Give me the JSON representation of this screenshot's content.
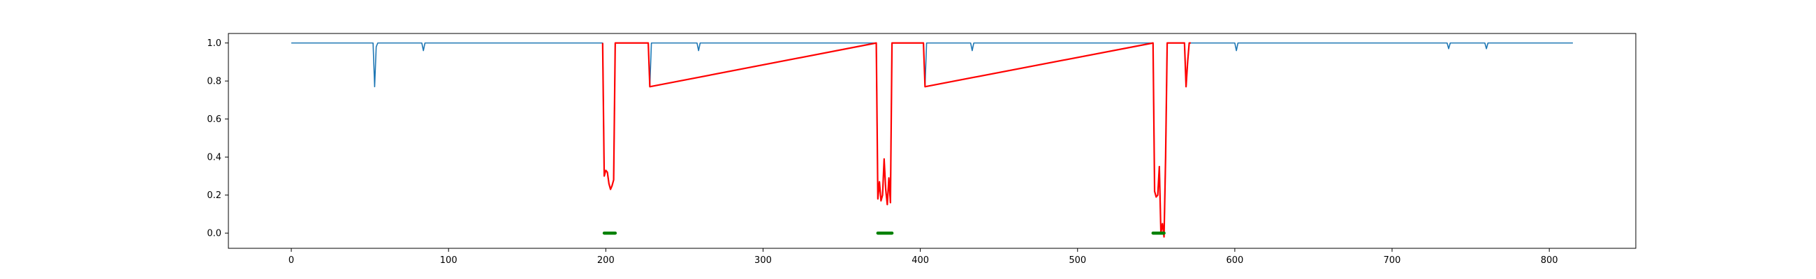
{
  "chart_data": {
    "type": "line",
    "title": "",
    "xlabel": "",
    "ylabel": "",
    "xlim": [
      -40,
      855
    ],
    "ylim": [
      -0.08,
      1.05
    ],
    "grid": false,
    "x_ticks": [
      0,
      100,
      200,
      300,
      400,
      500,
      600,
      700,
      800
    ],
    "y_ticks": [
      0.0,
      0.2,
      0.4,
      0.6,
      0.8,
      1.0
    ],
    "x_tick_labels": [
      "0",
      "100",
      "200",
      "300",
      "400",
      "500",
      "600",
      "700",
      "800"
    ],
    "y_tick_labels": [
      "0.0",
      "0.2",
      "0.4",
      "0.6",
      "0.8",
      "1.0"
    ],
    "colors": {
      "baseline": "#1f77b4",
      "highlight": "#ff0000",
      "marker": "#008000"
    },
    "series": [
      {
        "style": "baseline",
        "x": [
          0,
          52,
          53,
          54,
          55,
          83,
          84,
          85,
          198,
          199,
          200,
          201,
          202,
          203,
          204,
          205,
          206,
          227,
          228,
          229,
          258,
          259,
          260,
          372,
          373,
          374,
          375,
          376,
          377,
          378,
          379,
          380,
          381,
          382,
          383,
          384,
          402,
          403,
          404,
          405,
          432,
          433,
          434,
          548,
          549,
          550,
          551,
          552,
          553,
          554,
          555,
          556,
          557,
          558,
          568,
          569,
          570,
          571,
          600,
          601,
          602,
          735,
          736,
          737,
          759,
          760,
          761,
          815
        ],
        "y": [
          1.0,
          1.0,
          0.77,
          0.98,
          1.0,
          1.0,
          0.96,
          1.0,
          1.0,
          0.3,
          0.33,
          0.32,
          0.26,
          0.23,
          0.25,
          0.28,
          1.0,
          1.0,
          0.77,
          1.0,
          1.0,
          0.96,
          1.0,
          1.0,
          0.18,
          0.27,
          0.17,
          0.2,
          0.39,
          0.23,
          0.15,
          0.29,
          0.16,
          1.0,
          1.0,
          1.0,
          1.0,
          0.77,
          1.0,
          1.0,
          1.0,
          0.96,
          1.0,
          1.0,
          0.22,
          0.19,
          0.2,
          0.35,
          0.0,
          0.05,
          -0.02,
          0.4,
          1.0,
          1.0,
          1.0,
          0.77,
          0.9,
          1.0,
          1.0,
          0.96,
          1.0,
          1.0,
          0.97,
          1.0,
          1.0,
          0.97,
          1.0,
          1.0
        ]
      },
      {
        "style": "highlight",
        "x": [
          198,
          199,
          200,
          201,
          202,
          203,
          204,
          205,
          206,
          207,
          227,
          228,
          372,
          373,
          374,
          375,
          376,
          377,
          378,
          379,
          380,
          381,
          382,
          383,
          384,
          402,
          403,
          548,
          549,
          550,
          551,
          552,
          553,
          554,
          555,
          556,
          557,
          558,
          568,
          569,
          570,
          571,
          572
        ],
        "y": [
          1.0,
          0.3,
          0.33,
          0.32,
          0.26,
          0.23,
          0.25,
          0.28,
          1.0,
          1.0,
          1.0,
          0.77,
          1.0,
          0.18,
          0.27,
          0.17,
          0.2,
          0.39,
          0.23,
          0.15,
          0.29,
          0.16,
          1.0,
          1.0,
          1.0,
          1.0,
          0.77,
          1.0,
          0.22,
          0.19,
          0.2,
          0.35,
          0.0,
          0.05,
          -0.02,
          0.4,
          1.0,
          1.0,
          1.0,
          0.77,
          0.9,
          1.0,
          1.0
        ]
      }
    ],
    "markers": [
      {
        "x_start": 199,
        "x_end": 206,
        "y": 0.0
      },
      {
        "x_start": 373,
        "x_end": 382,
        "y": 0.0
      },
      {
        "x_start": 548,
        "x_end": 555,
        "y": 0.0
      }
    ]
  }
}
